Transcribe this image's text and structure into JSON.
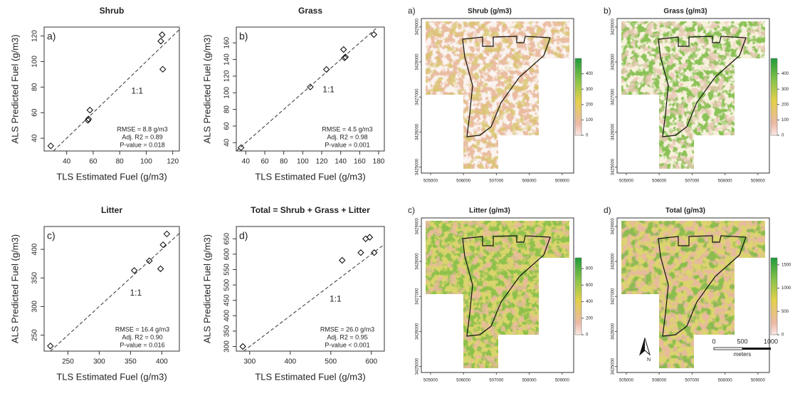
{
  "chart_data": [
    {
      "type": "scatter",
      "panel_label": "a)",
      "title": "Shrub",
      "x_label": "TLS Estimated Fuel (g/m3)",
      "y_label": "ALS Predicted Fuel (g/m3)",
      "x": [
        28,
        56,
        56.5,
        57.5,
        111,
        112,
        112.5
      ],
      "values": [
        34,
        54,
        55,
        62,
        116,
        121,
        94
      ],
      "color": "#000000",
      "xlim": [
        23,
        125
      ],
      "ylim": [
        30,
        127
      ],
      "xticks": [
        40,
        60,
        80,
        100,
        120
      ],
      "yticks": [
        40,
        60,
        80,
        100,
        120
      ],
      "line_label": "1:1",
      "stats": [
        "RMSE = 8.8 g/m3",
        "Adj. R2 = 0.89",
        "P-value = 0.018"
      ]
    },
    {
      "type": "scatter",
      "panel_label": "b)",
      "title": "Grass",
      "x_label": "TLS Estimated Fuel (g/m3)",
      "y_label": "ALS Predicted Fuel (g/m3)",
      "x": [
        35,
        108,
        125,
        143,
        144,
        145,
        175
      ],
      "values": [
        34,
        107,
        128,
        152,
        142,
        143,
        170
      ],
      "color": "#000000",
      "xlim": [
        30,
        186
      ],
      "ylim": [
        30,
        179
      ],
      "xticks": [
        40,
        60,
        80,
        100,
        120,
        140,
        160,
        180
      ],
      "yticks": [
        40,
        60,
        80,
        100,
        120,
        140,
        160
      ],
      "line_label": "1:1",
      "stats": [
        "RMSE = 4.5 g/m3",
        "Adj. R2 = 0.98",
        "P-value = 0.001"
      ]
    },
    {
      "type": "scatter",
      "panel_label": "c)",
      "title": "Litter",
      "x_label": "TLS Estimated Fuel (g/m3)",
      "y_label": "ALS Predicted Fuel (g/m3)",
      "x": [
        222,
        356,
        380,
        398,
        402,
        408
      ],
      "values": [
        231,
        363,
        380,
        366,
        408,
        427
      ],
      "color": "#000000",
      "xlim": [
        212,
        428
      ],
      "ylim": [
        222,
        440
      ],
      "xticks": [
        250,
        300,
        350,
        400
      ],
      "yticks": [
        250,
        300,
        350,
        400
      ],
      "line_label": "1:1",
      "stats": [
        "RMSE = 16.4 g/m3",
        "Adj. R2 = 0.90",
        "P-value = 0.016"
      ]
    },
    {
      "type": "scatter",
      "panel_label": "d)",
      "title": "Total = Shrub + Grass + Litter",
      "x_label": "TLS Estimated Fuel (g/m3)",
      "y_label": "ALS Predicted Fuel (g/m3)",
      "x": [
        283,
        528,
        574,
        586,
        596,
        607
      ],
      "values": [
        300,
        580,
        605,
        650,
        655,
        605
      ],
      "color": "#000000",
      "xlim": [
        267,
        632
      ],
      "ylim": [
        285,
        690
      ],
      "xticks": [
        300,
        400,
        500,
        600
      ],
      "yticks": [
        300,
        350,
        400,
        450,
        500,
        550,
        600,
        650
      ],
      "line_label": "1:1",
      "stats": [
        "RMSE = 26.0 g/m3",
        "Adj. R2 = 0.95",
        "P-value < 0.001"
      ]
    }
  ],
  "maps": {
    "xlim": [
      504850,
      509220
    ],
    "ylim": [
      3424950,
      3429160
    ],
    "xticks": [
      505000,
      506000,
      507000,
      508000,
      509000
    ],
    "yticks": [
      3425000,
      3426000,
      3427000,
      3428000,
      3429000
    ],
    "panels": [
      {
        "panel_label": "a)",
        "title": "Shrub (g/m3)",
        "colorbar_lim": [
          0,
          500
        ],
        "colorbar_ticks": [
          0,
          100,
          200,
          300,
          400
        ]
      },
      {
        "panel_label": "b)",
        "title": "Grass (g/m3)",
        "colorbar_lim": [
          0,
          500
        ],
        "colorbar_ticks": [
          0,
          100,
          200,
          300,
          400
        ]
      },
      {
        "panel_label": "c)",
        "title": "Litter (g/m3)",
        "colorbar_lim": [
          0,
          930
        ],
        "colorbar_ticks": [
          0,
          200,
          400,
          600,
          800
        ]
      },
      {
        "panel_label": "d)",
        "title": "Total (g/m3)",
        "colorbar_lim": [
          0,
          1650
        ],
        "colorbar_ticks": [
          0,
          500,
          1000,
          1500
        ]
      }
    ],
    "scale_bar": {
      "labels": [
        "0",
        "500",
        "1000"
      ],
      "unit": "meters"
    },
    "north_label": "N"
  }
}
